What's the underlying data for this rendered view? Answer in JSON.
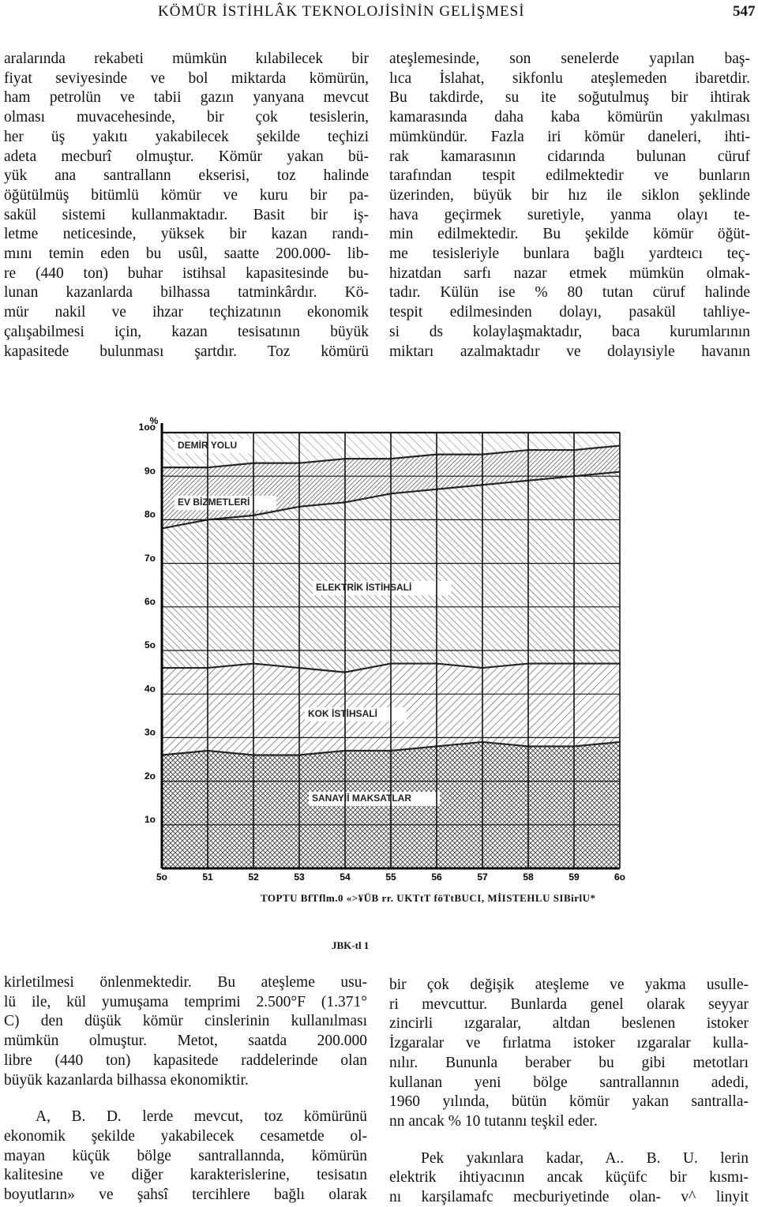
{
  "header": {
    "title": "KÖMÜR İSTİHLÂK TEKNOLOJİSİNİN GELİŞMESİ",
    "page_number": "547"
  },
  "sections": [
    {
      "paragraphs": [
        [
          "aralarında rekabeti mümkün kılabilecek bir",
          "fiyat seviyesinde ve bol miktarda kömürün,",
          "ham petrolün ve tabii gazın yanyana mevcut",
          "olması muvacehesinde, bir çok tesislerin,",
          "her üş yakıtı yakabilecek şekilde teçhizi",
          "adeta mecburî olmuştur. Kömür yakan bü-",
          "yük ana santrallann ekserisi, toz halinde",
          "öğütülmüş bitümlü kömür ve kuru bir pa-",
          "sakül sistemi kullanmaktadır. Basit bir iş-",
          "letme neticesinde, yüksek bir kazan randı-",
          "mını temin eden bu usûl, saatte 200.000- lib-",
          "re (440 ton) buhar istihsal kapasitesinde bu-",
          "lunan kazanlarda bilhassa tatminkârdır. Kö-",
          "mür nakil ve ihzar teçhizatının ekonomik",
          "çalışabilmesi için, kazan tesisatının büyük",
          "kapasitede bulunması şartdır. Toz kömürü"
        ]
      ]
    },
    {
      "paragraphs": [
        [
          "ateşlemesinde, son senelerde yapılan baş-",
          "lıca İslahat, sikfonlu ateşlemeden ibaretdir.",
          "Bu takdirde, su ite soğutulmuş bir ihtirak",
          "kamarasında daha kaba kömürün yakılması",
          "mümkündür. Fazla iri kömür daneleri, ihti-",
          "rak kamarasının cidarında bulunan cüruf",
          "tarafından tespit edilmektedir ve bunların",
          "üzerinden, büyük bir hız ile siklon şeklinde",
          "hava geçirmek suretiyle, yanma olayı te-",
          "min edilmektedir. Bu şekilde kömür öğüt-",
          "me tesisleriyle bunlara bağlı yardteıcı teç-",
          "hizatdan sarfı nazar etmek mümkün olmak-",
          "tadır. Külün ise % 80 tutan cüruf halinde",
          "tespit edilmesinden dolayı, pasakül tahliye-",
          "si ds kolaylaşmaktadır, baca kurumlarının",
          "miktarı azalmaktadır ve dolayısiyle havanın"
        ]
      ]
    },
    {
      "paragraphs": [
        [
          "kirletilmesi önlenmektedir. Bu ateşleme usu-",
          "lü ile, kül yumuşama temprimi 2.500°F (1.371°",
          "C) den düşük kömür cinslerinin kullanılması",
          "mümkün olmuştur. Metot, saatda 200.000",
          "libre (440 ton) kapasitede raddelerinde olan",
          "büyük kazanlarda bilhassa ekonomiktir."
        ],
        [
          "A, B. D. lerde mevcut, toz kömürünü",
          "ekonomik şekilde yakabilecek cesametde ol-",
          "mayan küçük bölge santrallannda, kömürün",
          "kalitesine ve diğer karakterislerine, tesisatın",
          "boyutların» ve şahsî tercihlere bağlı olarak"
        ]
      ]
    },
    {
      "paragraphs": [
        [
          "bir çok değişik ateşleme ve yakma usulle-",
          "ri mevcuttur. Bunlarda genel olarak seyyar",
          "zincirli ızgaralar, altdan beslenen istoker",
          "İzgaralar ve fırlatma istoker ızgaralar kulla-",
          "nılır. Bununla beraber bu gibi metotları",
          "kullanan yeni bölge santrallannın adedi,",
          "1960 yılında, bütün kömür yakan santralla-",
          "nn ancak % 10 tutannı teşkil eder."
        ],
        [
          "Pek yakınlara kadar, A.. B. U. lerin",
          "elektrik ihtiyacının ancak küçüfc bir kısmı-",
          "nı karşilamafc mecburiyetinde olan- v^ linyit"
        ]
      ]
    }
  ],
  "figure_caption": "TOPTU BfTflm.0 «>¥ÜB rr. UKTtT föTtBUCI, MİISTEHLU SIBirlU*",
  "figure_number": "JBK-tl 1",
  "chart_data": {
    "type": "area",
    "stacked": true,
    "grid": true,
    "y_label": "%",
    "x": [
      50,
      51,
      52,
      53,
      54,
      55,
      56,
      57,
      58,
      59,
      60
    ],
    "xlim": [
      50,
      60
    ],
    "xticks": [
      {
        "value": 50,
        "label": "5o"
      },
      51,
      52,
      53,
      54,
      55,
      56,
      57,
      58,
      59,
      {
        "value": 60,
        "label": "6o"
      }
    ],
    "ylim": [
      0,
      100
    ],
    "yticks": [
      {
        "value": 10,
        "label": "1o"
      },
      {
        "value": 20,
        "label": "2o"
      },
      {
        "value": 30,
        "label": "3o"
      },
      {
        "value": 40,
        "label": "4o"
      },
      {
        "value": 50,
        "label": "5o"
      },
      {
        "value": 60,
        "label": "6o"
      },
      {
        "value": 70,
        "label": "7o"
      },
      {
        "value": 80,
        "label": "8o"
      },
      {
        "value": 90,
        "label": "9o"
      },
      {
        "value": 100,
        "label": "1oo"
      }
    ],
    "series": [
      {
        "name": "SANAYİİ MAKSATLAR",
        "color": "#222222",
        "values": [
          26,
          27,
          26,
          26,
          27,
          27,
          28,
          29,
          28,
          28,
          29
        ]
      },
      {
        "name": "KOK İSTİHSALİ",
        "color": "#222222",
        "values": [
          20,
          19,
          21,
          20,
          18,
          20,
          19,
          17,
          19,
          19,
          18
        ]
      },
      {
        "name": "ELEKTRİK İSTİHSALİ",
        "color": "#222222",
        "values": [
          32,
          34,
          34,
          37,
          39,
          39,
          40,
          42,
          42,
          43,
          44
        ]
      },
      {
        "name": "EV BİZMETLERİ",
        "color": "#222222",
        "values": [
          14,
          12,
          12,
          10,
          10,
          8,
          8,
          7,
          7,
          6,
          6
        ]
      },
      {
        "name": "DEMİR YOLU",
        "color": "#222222",
        "values": [
          8,
          8,
          7,
          7,
          6,
          6,
          5,
          5,
          4,
          4,
          3
        ]
      }
    ]
  }
}
